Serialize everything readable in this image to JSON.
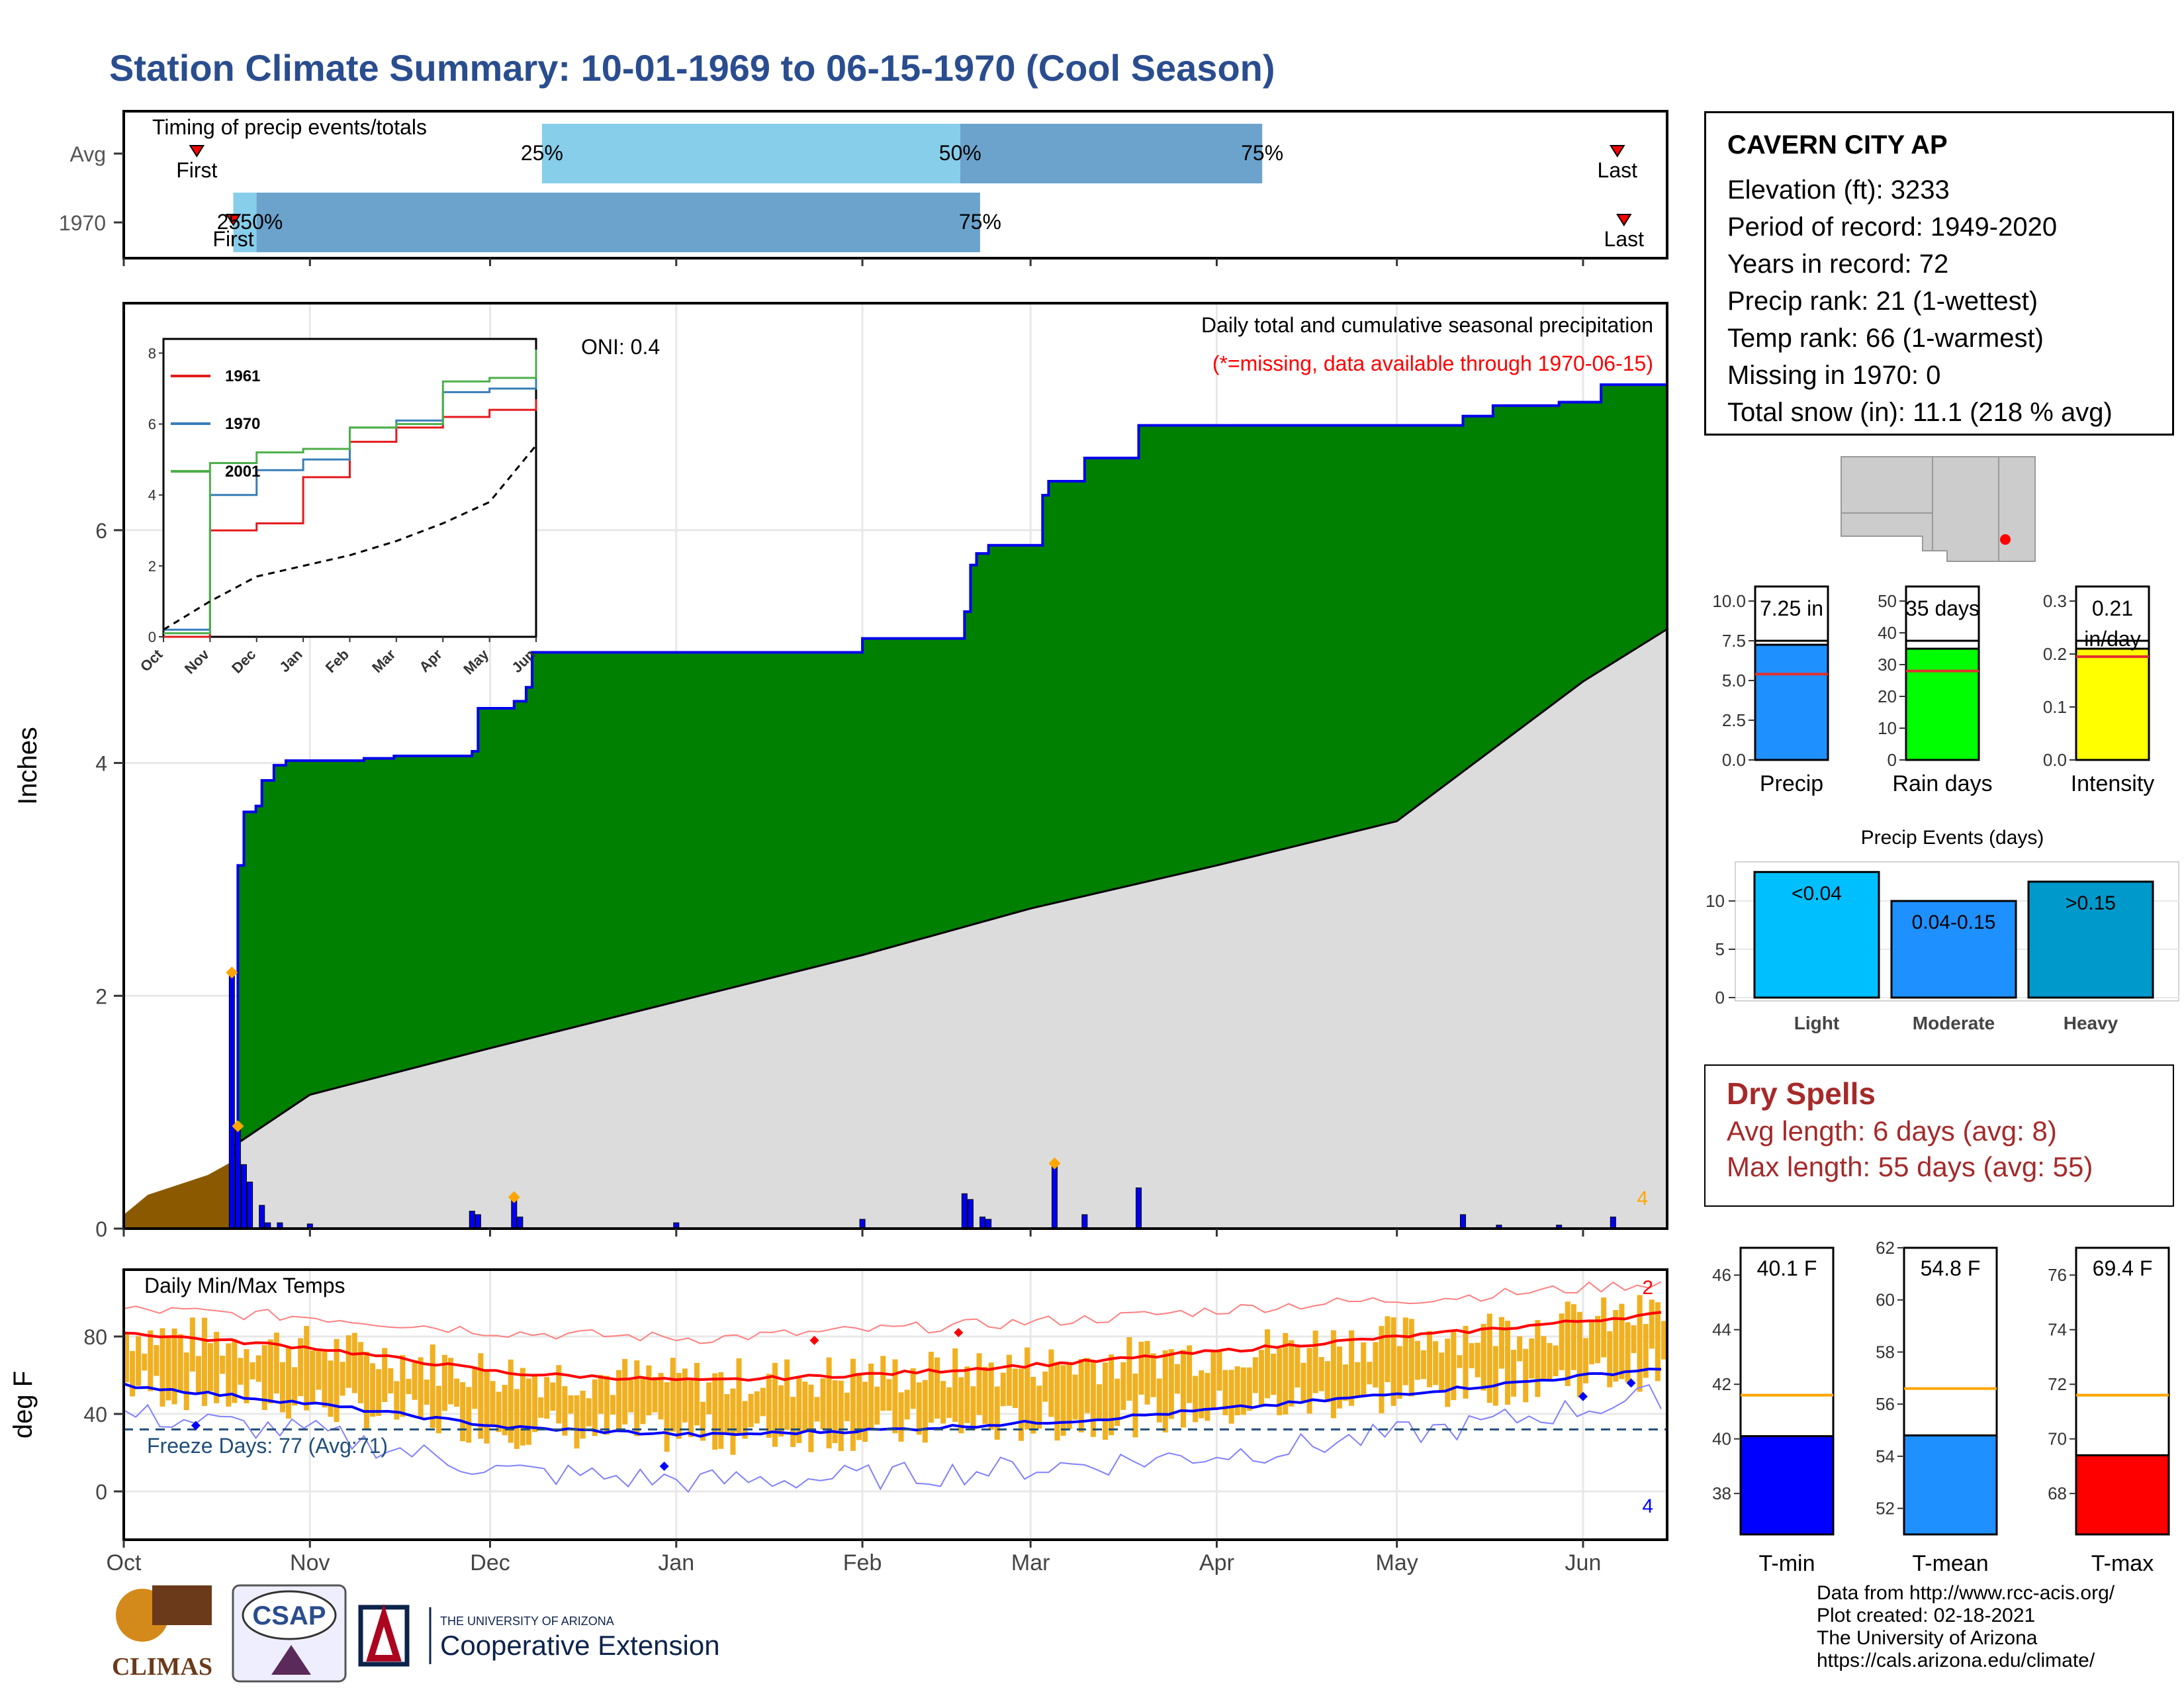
{
  "title": "Station Climate Summary: 10-01-1969 to 06-15-1970 (Cool Season)",
  "timing": {
    "label": "Timing of precip events/totals",
    "rows": [
      {
        "name": "Avg",
        "first_day": 22,
        "last_day": 450,
        "p25": 126,
        "p50": 252,
        "p75": 343
      },
      {
        "name": "1970",
        "first_day": 33,
        "last_day": 452,
        "p25": 33,
        "p50": 40,
        "p75": 258
      }
    ],
    "first_label": "First",
    "last_label": "Last",
    "p25_label": "25%",
    "p50_label": "50%",
    "p75_label": "75%",
    "overlap_label_1970": "2550%"
  },
  "colors": {
    "title": "#2a4d8f",
    "cumulative_fill": "#008000",
    "cumulative_line": "#0000ee",
    "normal_fill": "#dcdcdc",
    "prior_fill": "#8b5a00",
    "daily_bar": "#0000ee",
    "marker": "#ffa500",
    "tmin_bar": "#0000ff",
    "tmean_bar": "#1e90ff",
    "tmax_bar": "#ff0000",
    "precip_bar": "#1e90ff",
    "raindays_bar": "#00ff00",
    "intensity_bar": "#ffff00",
    "light_bar": "#00bfff",
    "moderate_bar": "#1e90ff",
    "heavy_bar": "#0099cc",
    "temp_range": "#f0b020",
    "dry_text": "#a52a2a",
    "freeze_line": "#1f4e79"
  },
  "precip": {
    "ylabel": "Inches",
    "header": "Daily total and cumulative seasonal precipitation",
    "subheader": "(*=missing, data available through 1970-06-15)",
    "oni": "ONI: 0.4",
    "corner_count": "4",
    "months": [
      "Oct",
      "Nov",
      "Dec",
      "Jan",
      "Feb",
      "Mar",
      "Apr",
      "May",
      "Jun"
    ],
    "yticks": [
      "0",
      "2",
      "4",
      "6"
    ],
    "ylim": [
      0,
      8
    ]
  },
  "inset": {
    "yticks": [
      "0",
      "2",
      "4",
      "6",
      "8"
    ],
    "months": [
      "Oct",
      "Nov",
      "Dec",
      "Jan",
      "Feb",
      "Mar",
      "Apr",
      "May",
      "Jun"
    ],
    "legend": [
      {
        "name": "1961",
        "color": "#e41a1c"
      },
      {
        "name": "1970",
        "color": "#377eb8"
      },
      {
        "name": "2001",
        "color": "#4daf4a"
      }
    ]
  },
  "temps": {
    "ylabel": "deg F",
    "label": "Daily Min/Max Temps",
    "freeze_label": "Freeze Days: 77 (Avg:71)",
    "top_count": "2",
    "bottom_count": "4",
    "yticks": [
      "0",
      "40",
      "80"
    ],
    "months": [
      "Oct",
      "Nov",
      "Dec",
      "Jan",
      "Feb",
      "Mar",
      "Apr",
      "May",
      "Jun"
    ],
    "freeze_value": 32
  },
  "station": {
    "name": "CAVERN CITY AP",
    "lines": [
      "Elevation (ft): 3233",
      "Period of record: 1949-2020",
      "Years in record: 72",
      "Precip rank: 21 (1-wettest)",
      "Temp rank: 66 (1-warmest)",
      "Missing in 1970: 0",
      "Total snow (in): 11.1 (218 % avg)"
    ]
  },
  "summary_bars": [
    {
      "label": "Precip",
      "value_label": "7.25 in",
      "value": 7.25,
      "avg": 5.4,
      "ymax": 10,
      "yticks": [
        "0.0",
        "2.5",
        "5.0",
        "7.5",
        "10.0"
      ],
      "color": "#1e90ff"
    },
    {
      "label": "Rain days",
      "value_label": "35 days",
      "value": 35,
      "avg": 28,
      "ymax": 50,
      "yticks": [
        "0",
        "10",
        "20",
        "30",
        "40",
        "50"
      ],
      "color": "#00ff00"
    },
    {
      "label": "Intensity",
      "value_label": "0.21 in/day",
      "value": 0.21,
      "avg": 0.195,
      "ymax": 0.3,
      "yticks": [
        "0.0",
        "0.1",
        "0.2",
        "0.3"
      ],
      "color": "#ffff00"
    }
  ],
  "events": {
    "title": "Precip Events (days)",
    "yticks": [
      "0",
      "5",
      "10"
    ],
    "bars": [
      {
        "label": "Light",
        "value_label": "<0.04",
        "value": 13,
        "color": "#00bfff"
      },
      {
        "label": "Moderate",
        "value_label": "0.04-0.15",
        "value": 10,
        "color": "#1e90ff"
      },
      {
        "label": "Heavy",
        "value_label": ">0.15",
        "value": 12,
        "color": "#0099cc"
      }
    ]
  },
  "dry_spells": {
    "title": "Dry Spells",
    "avg_line": "Avg length: 6 days (avg: 8)",
    "max_line": "Max length: 55 days (avg: 55)"
  },
  "temp_bars": [
    {
      "label": "T-min",
      "value_label": "40.1 F",
      "value": 40.1,
      "avg": 41.6,
      "ymin": 36.5,
      "ymax": 47,
      "yticks": [
        "38",
        "40",
        "42",
        "44",
        "46"
      ],
      "color": "#0000ff"
    },
    {
      "label": "T-mean",
      "value_label": "54.8 F",
      "value": 54.8,
      "avg": 56.6,
      "ymin": 51,
      "ymax": 62,
      "yticks": [
        "52",
        "54",
        "56",
        "58",
        "60",
        "62"
      ],
      "color": "#1e90ff"
    },
    {
      "label": "T-max",
      "value_label": "69.4 F",
      "value": 69.4,
      "avg": 71.6,
      "ymin": 66.5,
      "ymax": 77,
      "yticks": [
        "68",
        "70",
        "72",
        "74",
        "76"
      ],
      "color": "#ff0000"
    }
  ],
  "credits": [
    "Data from http://www.rcc-acis.org/",
    "Plot created: 02-18-2021",
    "The University of Arizona",
    "https://cals.arizona.edu/climate/"
  ],
  "logos": {
    "climas": "CLIMAS",
    "csap": "CSAP",
    "ua_line1": "THE UNIVERSITY OF ARIZONA",
    "ua_line2": "Cooperative Extension"
  },
  "chart_data": [
    {
      "type": "line",
      "name": "cumulative seasonal precipitation",
      "x_unit": "date",
      "x": [
        "1969-10-01",
        "1969-10-19",
        "1969-10-20",
        "1969-10-21",
        "1969-10-23",
        "1969-10-24",
        "1969-10-26",
        "1969-10-28",
        "1969-11-10",
        "1969-11-15",
        "1969-11-28",
        "1969-11-29",
        "1969-12-04",
        "1969-12-05",
        "1969-12-07",
        "1969-12-08",
        "1970-02-01",
        "1970-02-18",
        "1970-02-19",
        "1970-02-20",
        "1970-02-22",
        "1970-02-25",
        "1970-03-03",
        "1970-03-04",
        "1970-03-10",
        "1970-03-19",
        "1970-05-12",
        "1970-05-17",
        "1970-05-28",
        "1970-06-04",
        "1970-06-15"
      ],
      "y": [
        0.65,
        0.65,
        3.12,
        3.58,
        3.63,
        3.85,
        3.98,
        4.02,
        4.04,
        4.06,
        4.1,
        4.47,
        4.47,
        4.53,
        4.65,
        4.95,
        5.07,
        5.3,
        5.7,
        5.8,
        5.87,
        5.87,
        6.3,
        6.42,
        6.62,
        6.9,
        6.98,
        7.07,
        7.1,
        7.25,
        7.25
      ],
      "ylabel": "Inches",
      "ylim": [
        0,
        8
      ]
    },
    {
      "type": "line",
      "name": "normal cumulative precipitation",
      "x_unit": "date",
      "x": [
        "1969-10-19",
        "1969-11-01",
        "1969-12-01",
        "1970-01-01",
        "1970-02-01",
        "1970-03-01",
        "1970-04-01",
        "1970-05-01",
        "1970-06-01",
        "1970-06-15"
      ],
      "y": [
        0.7,
        1.15,
        1.55,
        1.95,
        2.35,
        2.75,
        3.12,
        3.5,
        4.7,
        5.15
      ]
    },
    {
      "type": "bar",
      "name": "daily precipitation",
      "x": [
        "1969-10-19",
        "1969-10-20",
        "1969-10-21",
        "1969-10-22",
        "1969-10-24",
        "1969-10-25",
        "1969-10-27",
        "1969-11-01",
        "1969-11-28",
        "1969-11-29",
        "1969-12-05",
        "1969-12-06",
        "1970-01-01",
        "1970-02-01",
        "1970-02-18",
        "1970-02-19",
        "1970-02-21",
        "1970-02-22",
        "1970-03-05",
        "1970-03-10",
        "1970-03-19",
        "1970-05-12",
        "1970-05-18",
        "1970-05-28",
        "1970-06-06"
      ],
      "values": [
        2.2,
        0.85,
        0.55,
        0.4,
        0.2,
        0.05,
        0.05,
        0.04,
        0.15,
        0.12,
        0.25,
        0.1,
        0.05,
        0.08,
        0.3,
        0.25,
        0.1,
        0.08,
        0.55,
        0.12,
        0.35,
        0.12,
        0.03,
        0.03,
        0.1
      ],
      "ylim": [
        0,
        8
      ]
    },
    {
      "type": "line",
      "name": "inset cumulative precipitation",
      "x": [
        "Oct",
        "Nov",
        "Dec",
        "Jan",
        "Feb",
        "Mar",
        "Apr",
        "May",
        "Jun"
      ],
      "series": [
        {
          "name": "1961",
          "values": [
            0.0,
            3.0,
            3.2,
            4.5,
            5.5,
            5.9,
            6.2,
            6.4,
            6.7
          ]
        },
        {
          "name": "1970",
          "values": [
            0.2,
            4.0,
            4.7,
            5.0,
            5.9,
            6.1,
            6.9,
            7.0,
            7.3
          ]
        },
        {
          "name": "2001",
          "values": [
            0.1,
            4.9,
            5.2,
            5.3,
            5.9,
            6.0,
            7.2,
            7.3,
            8.1
          ]
        }
      ],
      "normal": [
        0.2,
        1.0,
        1.7,
        2.0,
        2.3,
        2.7,
        3.2,
        3.8,
        5.4
      ],
      "ylim": [
        0,
        8
      ]
    },
    {
      "type": "line",
      "name": "temperature",
      "x": [
        "Oct",
        "Nov",
        "Dec",
        "Jan",
        "Feb",
        "Mar",
        "Apr",
        "May",
        "Jun"
      ],
      "series": [
        {
          "name": "avg max",
          "values": [
            82,
            74,
            61,
            57,
            61,
            67,
            75,
            83,
            92
          ]
        },
        {
          "name": "avg min",
          "values": [
            55,
            45,
            33,
            29,
            32,
            37,
            45,
            54,
            64
          ]
        },
        {
          "name": "record max",
          "values": [
            94,
            90,
            82,
            79,
            84,
            89,
            96,
            101,
            108
          ]
        },
        {
          "name": "record min",
          "values": [
            40,
            30,
            10,
            5,
            8,
            14,
            22,
            34,
            50
          ]
        }
      ],
      "freeze_line": 32,
      "ylabel": "deg F"
    }
  ]
}
